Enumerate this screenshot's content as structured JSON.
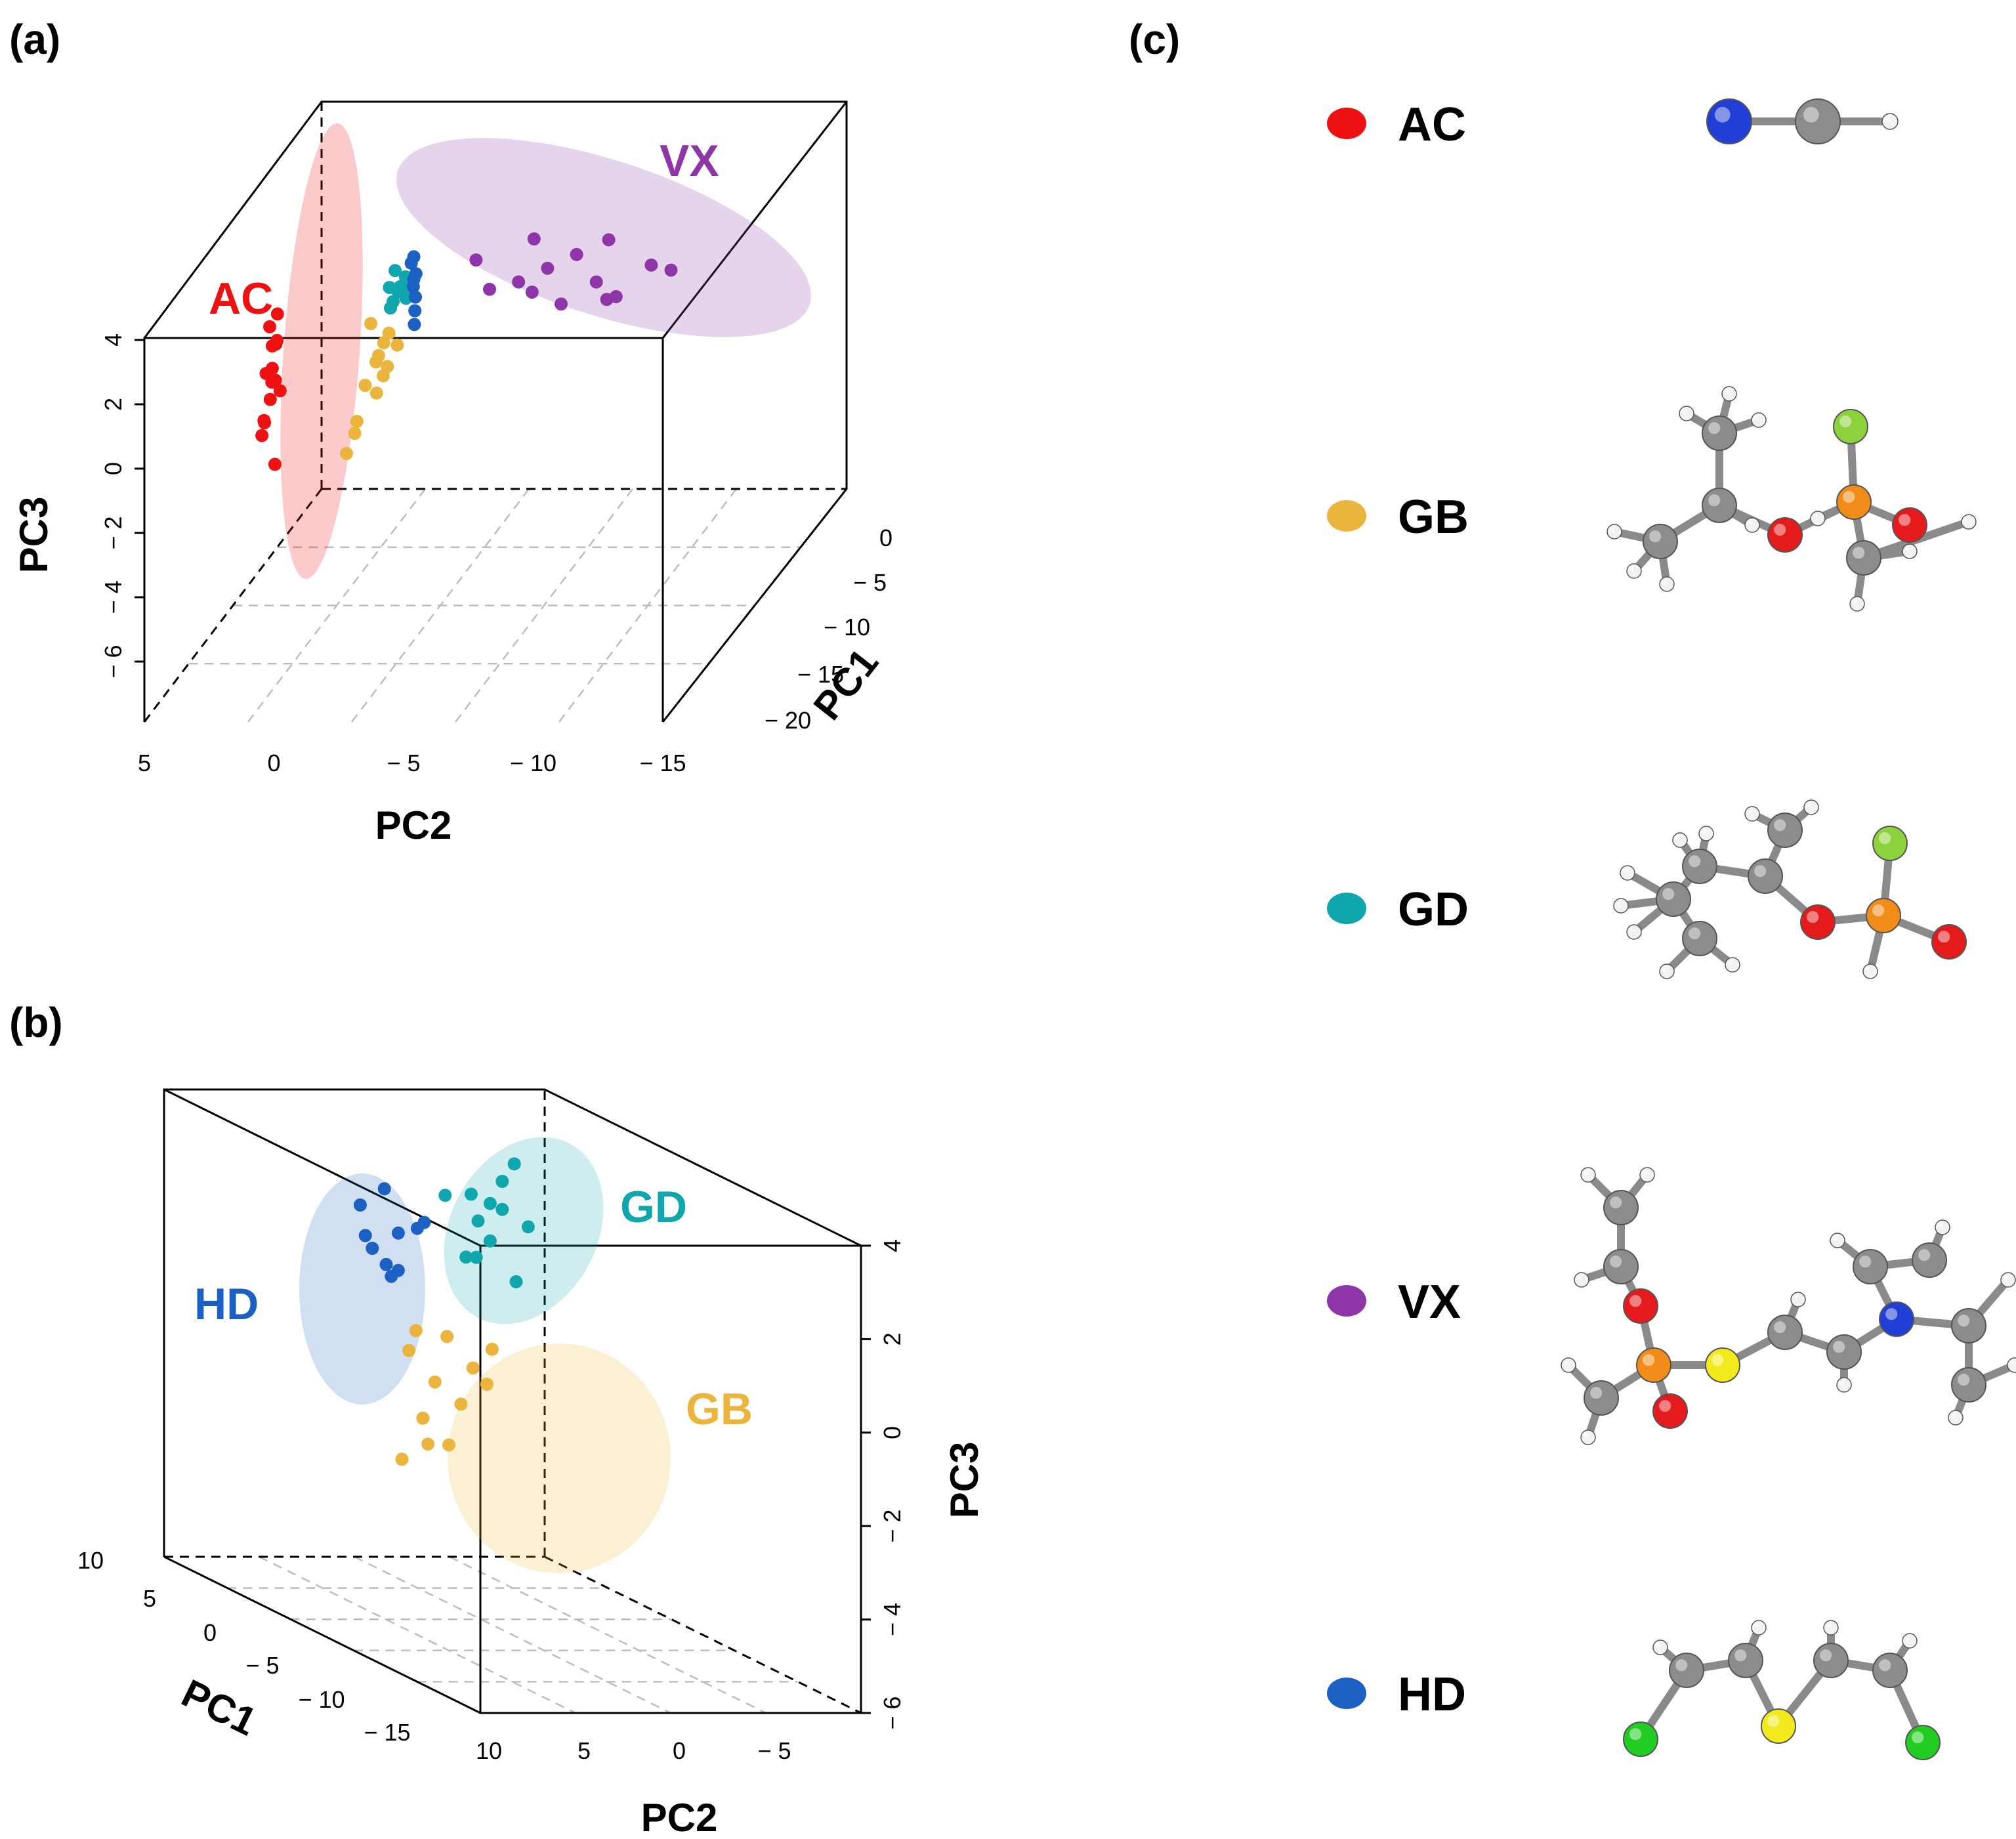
{
  "panels": {
    "a": "(a)",
    "b": "(b)",
    "c": "(c)"
  },
  "colors": {
    "AC": "#ee1111",
    "GB": "#ebb43c",
    "GD": "#10a6ad",
    "VX": "#8e36a8",
    "HD": "#1b60c2"
  },
  "chart_data": [
    {
      "type": "scatter",
      "subtype": "3d-pca",
      "panel": "(a)",
      "xlabel": "PC2",
      "ylabel": "PC1",
      "zlabel": "PC3",
      "x_ticks": [
        "5",
        "0",
        "− 5",
        "− 10",
        "− 15"
      ],
      "y_ticks": [
        "0",
        "− 5",
        "− 10",
        "− 15",
        "− 20"
      ],
      "z_ticks": [
        "4",
        "2",
        "0",
        "− 2",
        "− 4",
        "− 6"
      ],
      "xlim": [
        5,
        -15
      ],
      "ylim": [
        0,
        -20
      ],
      "zlim": [
        -8,
        4
      ],
      "grid": true,
      "cluster_labels": [
        "AC",
        "VX"
      ],
      "series": [
        {
          "name": "AC",
          "points": [
            [
              1.5,
              -8,
              1.5
            ],
            [
              1.5,
              -8,
              2.2
            ],
            [
              1.2,
              -8,
              0.8
            ],
            [
              1.8,
              -8,
              -0.2
            ],
            [
              1.6,
              -8,
              2.8
            ],
            [
              1.4,
              -9,
              1.2
            ],
            [
              1.7,
              -7,
              0.4
            ],
            [
              1.3,
              -8,
              3.2
            ],
            [
              1.9,
              -8,
              -0.6
            ],
            [
              1.5,
              -10,
              1.6
            ],
            [
              1.6,
              -6,
              2.0
            ],
            [
              1.4,
              -8,
              -1.5
            ],
            [
              1.7,
              -9,
              0.0
            ],
            [
              1.5,
              -7,
              1.0
            ],
            [
              1.2,
              -9,
              2.5
            ]
          ]
        },
        {
          "name": "GB",
          "points": [
            [
              -2.5,
              -8,
              1.7
            ],
            [
              -2.8,
              -8,
              2.3
            ],
            [
              -2.2,
              -9,
              1.1
            ],
            [
              -3.0,
              -8,
              2.6
            ],
            [
              -2.4,
              -7,
              0.6
            ],
            [
              -1.8,
              -9,
              -0.4
            ],
            [
              -2.6,
              -8,
              1.9
            ],
            [
              -3.2,
              -7,
              2.1
            ],
            [
              -2.0,
              -10,
              0.1
            ],
            [
              -2.9,
              -9,
              1.4
            ],
            [
              -2.3,
              -8,
              2.9
            ],
            [
              -1.6,
              -10,
              -0.9
            ],
            [
              -2.7,
              -6,
              1.3
            ]
          ]
        },
        {
          "name": "GD",
          "points": [
            [
              -3.0,
              -5,
              3.5
            ],
            [
              -3.2,
              -6,
              3.8
            ],
            [
              -2.8,
              -5,
              3.2
            ],
            [
              -3.4,
              -6,
              4.1
            ],
            [
              -3.1,
              -4,
              3.6
            ],
            [
              -2.9,
              -7,
              3.9
            ],
            [
              -3.3,
              -5,
              3.3
            ],
            [
              -3.0,
              -6,
              4.3
            ],
            [
              -2.7,
              -5,
              3.0
            ],
            [
              -3.5,
              -7,
              3.7
            ]
          ]
        },
        {
          "name": "HD",
          "points": [
            [
              -3.6,
              -5,
              3.9
            ],
            [
              -3.8,
              -6,
              4.2
            ],
            [
              -3.9,
              -7,
              3.6
            ],
            [
              -3.5,
              -5,
              4.4
            ],
            [
              -4.0,
              -8,
              3.3
            ],
            [
              -3.7,
              -6,
              3.8
            ],
            [
              -4.1,
              -9,
              3.0
            ],
            [
              -3.6,
              -5,
              4.6
            ]
          ]
        },
        {
          "name": "VX",
          "points": [
            [
              -6,
              -5,
              4.5
            ],
            [
              -8,
              -8,
              4.2
            ],
            [
              -10,
              -6,
              4.8
            ],
            [
              -12,
              -10,
              4.0
            ],
            [
              -9,
              -12,
              4.4
            ],
            [
              -11,
              -4,
              5.0
            ],
            [
              -7,
              -9,
              4.1
            ],
            [
              -13,
              -7,
              4.6
            ],
            [
              -10,
              -11,
              3.9
            ],
            [
              -8,
              -3,
              4.9
            ],
            [
              -12,
              -13,
              4.3
            ],
            [
              -14,
              -9,
              4.7
            ],
            [
              -9,
              -7,
              4.5
            ],
            [
              -11,
              -8,
              4.2
            ]
          ]
        }
      ]
    },
    {
      "type": "scatter",
      "subtype": "3d-pca",
      "panel": "(b)",
      "xlabel": "PC2",
      "ylabel": "PC1",
      "zlabel": "PC3",
      "x_ticks": [
        "10",
        "5",
        "0",
        "− 5"
      ],
      "y_ticks": [
        "10",
        "5",
        "0",
        "− 5",
        "− 10",
        "− 15"
      ],
      "z_ticks": [
        "4",
        "2",
        "0",
        "− 2",
        "− 4",
        "− 6"
      ],
      "xlim": [
        10,
        -10
      ],
      "ylim": [
        10,
        -15
      ],
      "zlim": [
        -6,
        4
      ],
      "grid": true,
      "cluster_labels": [
        "GD",
        "HD",
        "GB"
      ],
      "series": [
        {
          "name": "GD",
          "points": [
            [
              4,
              0,
              3.8
            ],
            [
              3,
              1,
              4.2
            ],
            [
              5,
              -1,
              3.5
            ],
            [
              2,
              2,
              4.5
            ],
            [
              4,
              0,
              3.0
            ],
            [
              6,
              -2,
              2.8
            ],
            [
              3,
              1,
              3.6
            ],
            [
              5,
              0,
              4.0
            ],
            [
              4,
              2,
              2.5
            ],
            [
              2,
              0,
              3.3
            ],
            [
              6,
              1,
              3.9
            ],
            [
              3,
              -1,
              2.2
            ]
          ]
        },
        {
          "name": "HD",
          "points": [
            [
              7,
              5,
              2.8
            ],
            [
              8,
              6,
              2.4
            ],
            [
              6,
              4,
              3.1
            ],
            [
              7,
              5,
              2.0
            ],
            [
              8,
              7,
              2.6
            ],
            [
              9,
              5,
              3.4
            ],
            [
              7,
              6,
              1.8
            ],
            [
              6,
              5,
              2.9
            ],
            [
              8,
              4,
              2.2
            ],
            [
              7,
              7,
              3.6
            ]
          ]
        },
        {
          "name": "GB",
          "points": [
            [
              9,
              -2,
              0.8
            ],
            [
              8,
              -3,
              0.2
            ],
            [
              9,
              -4,
              -0.5
            ],
            [
              7,
              -2,
              1.1
            ],
            [
              8,
              -5,
              -1.0
            ],
            [
              6,
              -3,
              0.5
            ],
            [
              9,
              -1,
              -1.6
            ],
            [
              7,
              -4,
              -0.2
            ],
            [
              5,
              -3,
              0.9
            ],
            [
              8,
              -2,
              -1.2
            ],
            [
              6,
              -5,
              0.3
            ],
            [
              9,
              -3,
              1.3
            ]
          ]
        }
      ]
    }
  ],
  "legend": [
    {
      "name": "AC",
      "label": "AC",
      "molecule": "hydrogen cyanide"
    },
    {
      "name": "GB",
      "label": "GB",
      "molecule": "sarin"
    },
    {
      "name": "GD",
      "label": "GD",
      "molecule": "soman"
    },
    {
      "name": "VX",
      "label": "VX",
      "molecule": "VX"
    },
    {
      "name": "HD",
      "label": "HD",
      "molecule": "sulfur mustard"
    }
  ],
  "atom_colors": {
    "C": "#8c8c8c",
    "H": "#f2f2f2",
    "O": "#e41a1c",
    "N": "#1f3fd6",
    "P": "#f28c18",
    "F": "#8cd23c",
    "S": "#f2ea1c",
    "Cl": "#22cc22"
  }
}
